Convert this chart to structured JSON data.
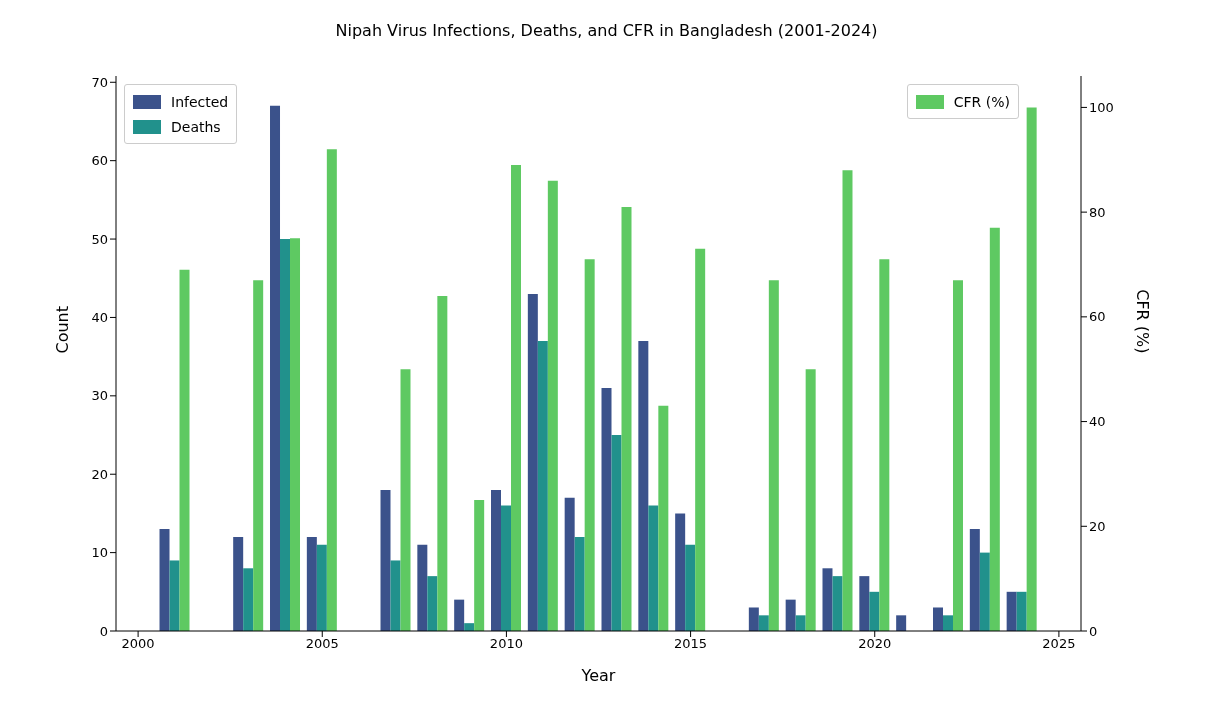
{
  "chart_data": {
    "type": "bar",
    "title": "Nipah Virus Infections, Deaths, and CFR in Bangladesh (2001-2024)",
    "xlabel": "Year",
    "ylabel": "Count",
    "y2label": "CFR (%)",
    "x": [
      2001,
      2003,
      2004,
      2005,
      2007,
      2008,
      2009,
      2010,
      2011,
      2012,
      2013,
      2014,
      2015,
      2017,
      2018,
      2019,
      2020,
      2021,
      2022,
      2023,
      2024
    ],
    "series": [
      {
        "name": "Infected",
        "color": "#3b528b",
        "values": [
          13,
          12,
          67,
          12,
          18,
          11,
          4,
          18,
          43,
          17,
          31,
          37,
          15,
          3,
          4,
          8,
          7,
          2,
          3,
          13,
          5
        ]
      },
      {
        "name": "Deaths",
        "color": "#21918c",
        "values": [
          9,
          8,
          50,
          11,
          9,
          7,
          1,
          16,
          37,
          12,
          25,
          16,
          11,
          2,
          2,
          7,
          5,
          0,
          2,
          10,
          5
        ]
      },
      {
        "name": "CFR (%)",
        "color": "#5ec962",
        "axis": "y2",
        "values": [
          69,
          67,
          75,
          92,
          50,
          64,
          25,
          89,
          86,
          71,
          81,
          43,
          73,
          67,
          50,
          88,
          71,
          0,
          67,
          77,
          100
        ]
      }
    ],
    "xlim": [
      1999.4,
      2025.6
    ],
    "xticks": [
      2000,
      2005,
      2010,
      2015,
      2020,
      2025
    ],
    "ylim": [
      0,
      70.8
    ],
    "yticks": [
      0,
      10,
      20,
      30,
      40,
      50,
      60,
      70
    ],
    "y2lim": [
      0,
      106
    ],
    "y2ticks": [
      0,
      20,
      40,
      60,
      80,
      100
    ],
    "grid": false,
    "legend": "top"
  }
}
